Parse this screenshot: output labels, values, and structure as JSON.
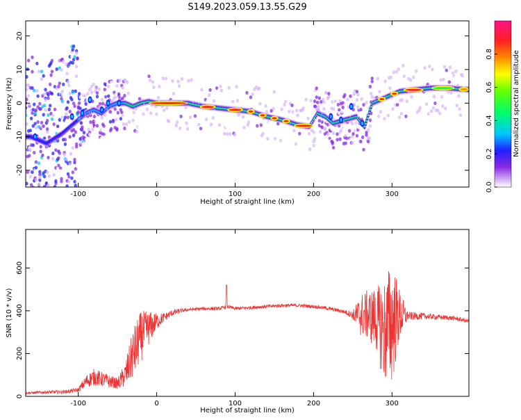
{
  "title": "S149.2023.059.13.55.G29",
  "chart_data": [
    {
      "type": "heatmap",
      "xlabel": "Height of straight line (km)",
      "ylabel": "Frequency (Hz)",
      "xlim": [
        -167,
        398
      ],
      "ylim": [
        -25,
        24.5
      ],
      "xticks": [
        -100,
        0,
        100,
        200,
        300
      ],
      "yticks": [
        -20,
        -10,
        0,
        10,
        20
      ],
      "colorbar": {
        "label": "Normalized spectral amplitude",
        "ticks": [
          "0.0",
          "0.2",
          "0.4",
          "0.6",
          "0.8"
        ],
        "range": [
          0,
          1
        ]
      },
      "ridge": {
        "x": [
          -160,
          -140,
          -120,
          -100,
          -90,
          -80,
          -70,
          -60,
          -50,
          -40,
          -30,
          -20,
          -10,
          0,
          20,
          40,
          60,
          80,
          100,
          120,
          140,
          160,
          180,
          195,
          205,
          215,
          225,
          240,
          255,
          265,
          275,
          290,
          310,
          330,
          350,
          370,
          398
        ],
        "y": [
          -10,
          -12,
          -9,
          -5,
          -3,
          -2,
          -3,
          -1,
          0,
          0,
          -1,
          0,
          0.5,
          0,
          0,
          0,
          -1,
          -1.5,
          -2,
          -2.5,
          -4,
          -5,
          -6.5,
          -7,
          -3,
          -4,
          -6,
          -5,
          -4,
          -7,
          0,
          1.5,
          3.5,
          4,
          4.5,
          4.5,
          4
        ]
      }
    },
    {
      "type": "line",
      "xlabel": "Height of straight line (km)",
      "ylabel": "SNR (10 * v/v)",
      "xlim": [
        -167,
        398
      ],
      "ylim": [
        0,
        780
      ],
      "xticks": [
        -100,
        0,
        100,
        200,
        300
      ],
      "yticks": [
        0,
        200,
        400,
        600
      ],
      "color": "#ee3333",
      "series": [
        {
          "x": [
            -167,
            -140,
            -120,
            -100,
            -90,
            -80,
            -70,
            -60,
            -50,
            -40,
            -30,
            -20,
            -10,
            0,
            10,
            20,
            30,
            40,
            60,
            80,
            90,
            100,
            120,
            140,
            160,
            180,
            200,
            220,
            240,
            250,
            260,
            270,
            280,
            290,
            300,
            310,
            320,
            340,
            360,
            380,
            398
          ],
          "y": [
            15,
            20,
            20,
            30,
            70,
            90,
            80,
            70,
            60,
            100,
            200,
            280,
            320,
            350,
            370,
            390,
            400,
            405,
            410,
            410,
            420,
            410,
            415,
            420,
            425,
            425,
            420,
            410,
            395,
            380,
            380,
            380,
            360,
            300,
            350,
            380,
            375,
            375,
            370,
            365,
            350
          ],
          "noise": [
            5,
            8,
            8,
            10,
            30,
            40,
            35,
            30,
            25,
            60,
            120,
            120,
            80,
            40,
            20,
            15,
            10,
            8,
            8,
            8,
            8,
            8,
            8,
            8,
            8,
            8,
            8,
            8,
            10,
            20,
            100,
            120,
            150,
            250,
            300,
            120,
            20,
            15,
            12,
            10,
            10
          ]
        }
      ]
    }
  ]
}
